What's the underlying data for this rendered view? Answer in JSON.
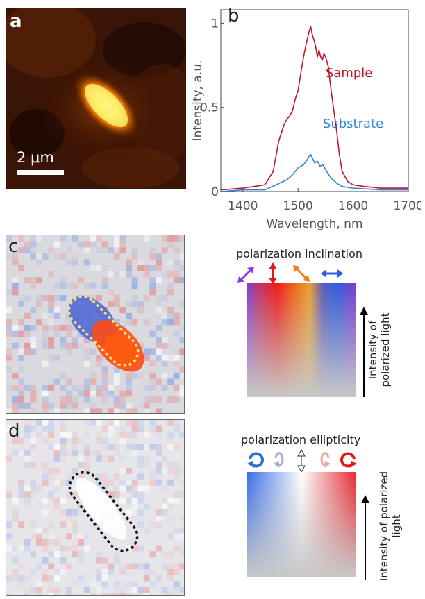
{
  "figure": {
    "panels": {
      "a": {
        "label": "a",
        "scale_bar": "2 μm"
      },
      "b": {
        "label": "b"
      },
      "c": {
        "label": "c"
      },
      "d": {
        "label": "d"
      }
    },
    "colorbar_c": {
      "title": "polarization inclination",
      "ylabel_line1": "Intensity of",
      "ylabel_line2": "polarized light",
      "arrow_colors": [
        "#8a3ee6",
        "#e01818",
        "#f07a1c",
        "#2a5fdc"
      ]
    },
    "colorbar_d": {
      "title": "polarization ellipticity",
      "ylabel": "Intensity of polarized light",
      "arrow_colors": [
        "#2a6fd6",
        "#a8a8e6",
        "#ffffff",
        "#f0a6a6",
        "#e01818"
      ]
    }
  },
  "chart_data": {
    "type": "line",
    "xlabel": "Wavelength, nm",
    "ylabel": "Intensity, a.u.",
    "xlim": [
      1360,
      1700
    ],
    "ylim": [
      0,
      1.08
    ],
    "xticks": [
      "1400",
      "1500",
      "1600",
      "1700"
    ],
    "yticks": [
      "0",
      "0.5",
      "1"
    ],
    "series": [
      {
        "name": "Sample",
        "color": "#c0152a",
        "x": [
          1360,
          1400,
          1440,
          1455,
          1465,
          1475,
          1480,
          1485,
          1490,
          1495,
          1500,
          1505,
          1510,
          1515,
          1520,
          1523,
          1526,
          1529,
          1532,
          1535,
          1538,
          1541,
          1544,
          1547,
          1550,
          1555,
          1560,
          1565,
          1570,
          1575,
          1580,
          1590,
          1600,
          1620,
          1650,
          1700
        ],
        "y": [
          0.01,
          0.02,
          0.04,
          0.12,
          0.3,
          0.4,
          0.43,
          0.45,
          0.48,
          0.55,
          0.6,
          0.7,
          0.8,
          0.88,
          0.95,
          0.98,
          0.93,
          0.9,
          0.86,
          0.8,
          0.84,
          0.8,
          0.78,
          0.82,
          0.8,
          0.74,
          0.6,
          0.48,
          0.36,
          0.22,
          0.12,
          0.06,
          0.04,
          0.03,
          0.02,
          0.02
        ]
      },
      {
        "name": "Substrate",
        "color": "#2f82d4",
        "x": [
          1360,
          1400,
          1440,
          1460,
          1480,
          1490,
          1500,
          1510,
          1515,
          1520,
          1523,
          1526,
          1530,
          1535,
          1540,
          1545,
          1550,
          1560,
          1570,
          1580,
          1600,
          1650,
          1700
        ],
        "y": [
          0.0,
          0.01,
          0.01,
          0.04,
          0.07,
          0.1,
          0.14,
          0.16,
          0.18,
          0.21,
          0.22,
          0.2,
          0.17,
          0.18,
          0.15,
          0.16,
          0.13,
          0.08,
          0.05,
          0.03,
          0.02,
          0.01,
          0.01
        ]
      }
    ]
  }
}
